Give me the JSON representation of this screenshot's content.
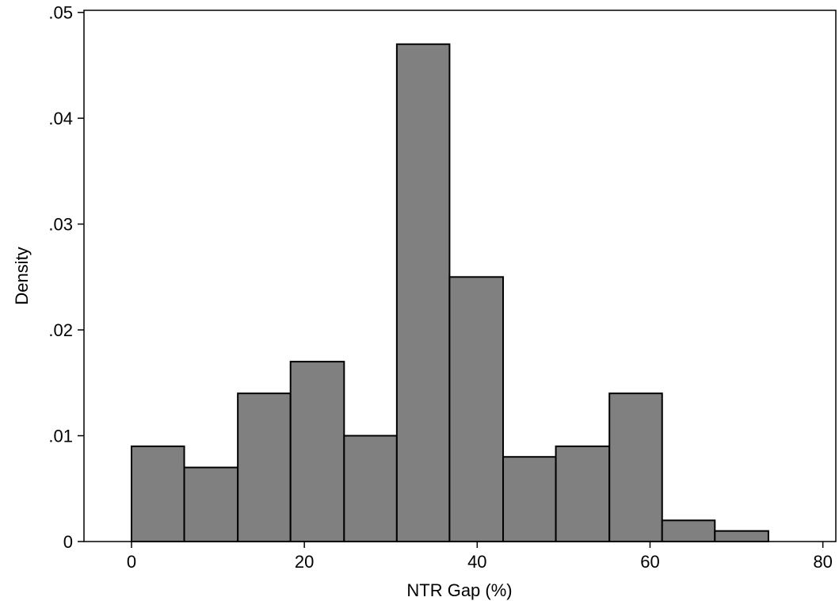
{
  "chart_data": {
    "type": "bar",
    "title": "",
    "xlabel": "NTR Gap (%)",
    "ylabel": "Density",
    "xlim": [
      -5.5,
      81.5
    ],
    "ylim": [
      0,
      0.0502
    ],
    "x_ticks": [
      0,
      20,
      40,
      60,
      80
    ],
    "x_tick_labels": [
      "0",
      "20",
      "40",
      "60",
      "80"
    ],
    "y_ticks": [
      0,
      0.01,
      0.02,
      0.03,
      0.04,
      0.05
    ],
    "y_tick_labels": [
      "0",
      ".01",
      ".02",
      ".03",
      ".04",
      ".05"
    ],
    "bin_edges": [
      0,
      6.1,
      12.3,
      18.4,
      24.6,
      30.7,
      36.8,
      43.0,
      49.1,
      55.3,
      61.4,
      67.5,
      73.7
    ],
    "values": [
      0.009,
      0.007,
      0.014,
      0.017,
      0.01,
      0.047,
      0.025,
      0.008,
      0.009,
      0.014,
      0.002,
      0.001
    ],
    "grid": false,
    "legend": "none",
    "colors": {
      "bar_fill": "#808080",
      "bar_stroke": "#000000",
      "axis": "#000000",
      "background": "#ffffff"
    }
  }
}
